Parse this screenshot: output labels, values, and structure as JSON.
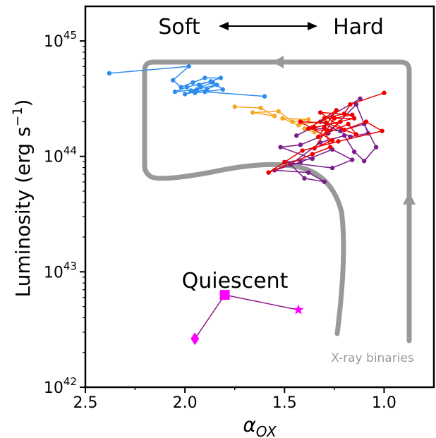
{
  "chart_data": {
    "type": "line",
    "xlabel": "α",
    "xlabel_sub": "OX",
    "ylabel_main": "Luminosity (erg s",
    "ylabel_sup": "−1",
    "ylabel_close": ")",
    "x_axis_reversed": true,
    "xlim": [
      2.5,
      0.75
    ],
    "ylim_log10": [
      42,
      45.3
    ],
    "y_scale": "log",
    "x_ticks": [
      {
        "value": 2.5,
        "label": "2.5"
      },
      {
        "value": 2.0,
        "label": "2.0"
      },
      {
        "value": 1.5,
        "label": "1.5"
      },
      {
        "value": 1.0,
        "label": "1.0"
      }
    ],
    "y_ticks": [
      {
        "exp": 42,
        "base": "10",
        "sup": "42"
      },
      {
        "exp": 43,
        "base": "10",
        "sup": "43"
      },
      {
        "exp": 44,
        "base": "10",
        "sup": "44"
      },
      {
        "exp": 45,
        "base": "10",
        "sup": "45"
      }
    ],
    "grid": false,
    "annotations": {
      "soft": "Soft",
      "hard": "Hard",
      "quiescent": "Quiescent",
      "xrb": "X-ray binaries"
    },
    "series": [
      {
        "color": "#2b8cee",
        "points": [
          [
            2.38,
            44.72
          ],
          [
            1.98,
            44.78
          ],
          [
            2.06,
            44.66
          ],
          [
            2.02,
            44.6
          ],
          [
            1.96,
            44.64
          ],
          [
            1.9,
            44.68
          ],
          [
            1.82,
            44.68
          ],
          [
            1.93,
            44.62
          ],
          [
            1.87,
            44.65
          ],
          [
            1.99,
            44.6
          ],
          [
            2.05,
            44.56
          ],
          [
            1.94,
            44.58
          ],
          [
            2.0,
            44.54
          ],
          [
            1.89,
            44.58
          ],
          [
            1.84,
            44.62
          ],
          [
            1.97,
            44.57
          ],
          [
            1.92,
            44.6
          ],
          [
            1.86,
            44.64
          ],
          [
            1.81,
            44.58
          ],
          [
            1.95,
            44.55
          ],
          [
            1.9,
            44.56
          ],
          [
            1.6,
            44.52
          ]
        ]
      },
      {
        "color": "#f5a623",
        "points": [
          [
            1.75,
            44.43
          ],
          [
            1.62,
            44.42
          ],
          [
            1.55,
            44.35
          ],
          [
            1.66,
            44.38
          ],
          [
            1.53,
            44.39
          ],
          [
            1.46,
            44.3
          ],
          [
            1.38,
            44.32
          ],
          [
            1.51,
            44.33
          ],
          [
            1.43,
            44.27
          ],
          [
            1.3,
            44.31
          ],
          [
            1.4,
            44.24
          ],
          [
            1.35,
            44.21
          ]
        ]
      },
      {
        "color": "#7b1c8a",
        "points": [
          [
            1.12,
            44.5
          ],
          [
            1.32,
            44.3
          ],
          [
            1.17,
            44.17
          ],
          [
            1.08,
            44.2
          ],
          [
            1.14,
            44.45
          ],
          [
            1.28,
            44.2
          ],
          [
            1.42,
            44.1
          ],
          [
            1.52,
            44.08
          ],
          [
            1.36,
            43.98
          ],
          [
            1.5,
            43.95
          ],
          [
            1.26,
            43.9
          ],
          [
            1.16,
            43.97
          ],
          [
            1.26,
            44.06
          ],
          [
            1.42,
            43.95
          ],
          [
            1.55,
            43.88
          ],
          [
            1.38,
            43.86
          ],
          [
            1.3,
            43.78
          ],
          [
            1.4,
            43.81
          ],
          [
            1.47,
            43.93
          ],
          [
            1.32,
            44.12
          ],
          [
            1.2,
            44.18
          ],
          [
            1.15,
            44.04
          ],
          [
            1.1,
            43.96
          ],
          [
            1.04,
            44.08
          ],
          [
            1.1,
            44.28
          ],
          [
            1.22,
            44.22
          ],
          [
            1.36,
            44.25
          ],
          [
            1.44,
            44.18
          ]
        ]
      },
      {
        "color": "#ee0000",
        "points": [
          [
            1.0,
            44.55
          ],
          [
            1.17,
            44.45
          ],
          [
            1.2,
            44.37
          ],
          [
            1.3,
            44.33
          ],
          [
            1.15,
            44.33
          ],
          [
            1.35,
            44.25
          ],
          [
            1.22,
            44.3
          ],
          [
            1.28,
            44.22
          ],
          [
            1.38,
            44.24
          ],
          [
            1.24,
            44.4
          ],
          [
            1.33,
            44.17
          ],
          [
            1.18,
            44.28
          ],
          [
            1.14,
            44.19
          ],
          [
            1.29,
            44.29
          ],
          [
            1.42,
            44.3
          ],
          [
            1.26,
            44.14
          ],
          [
            1.35,
            44.07
          ],
          [
            1.25,
            44.33
          ],
          [
            1.16,
            44.36
          ],
          [
            1.32,
            44.38
          ],
          [
            1.2,
            44.23
          ],
          [
            1.09,
            44.3
          ],
          [
            1.01,
            44.22
          ],
          [
            1.23,
            44.13
          ],
          [
            1.41,
            44.05
          ],
          [
            1.5,
            43.95
          ],
          [
            1.58,
            43.86
          ],
          [
            1.36,
            44.02
          ],
          [
            1.27,
            44.08
          ],
          [
            1.3,
            44.25
          ]
        ]
      },
      {
        "color": "#8b1a8b",
        "points": [
          [
            1.95,
            42.42
          ],
          [
            1.8,
            42.8
          ],
          [
            1.43,
            42.67
          ]
        ],
        "markers": [
          "diamond",
          "square",
          "star"
        ],
        "marker_color": "#ff00ff"
      }
    ]
  }
}
